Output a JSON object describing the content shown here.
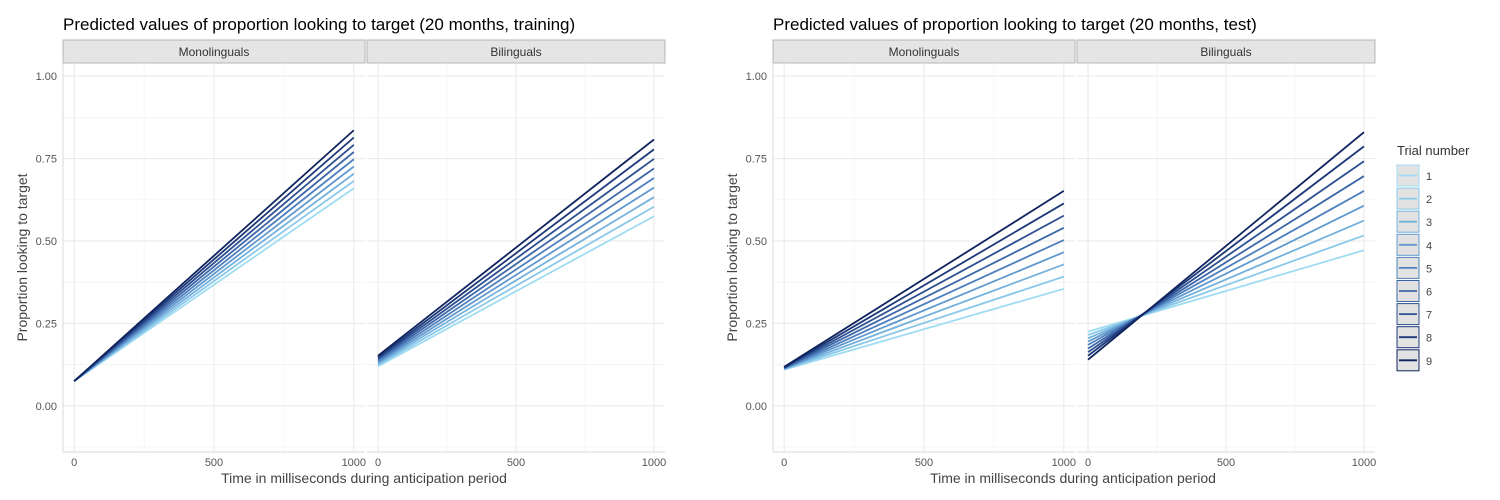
{
  "legend": {
    "title": "Trial number",
    "placement": "right",
    "entries": [
      "1",
      "2",
      "3",
      "4",
      "5",
      "6",
      "7",
      "8",
      "9"
    ],
    "colors": [
      "#9fdcf2",
      "#8ac8ea",
      "#75b1dd",
      "#6199cf",
      "#4e80be",
      "#3d67a8",
      "#2c4f91",
      "#1d3878",
      "#0f235e"
    ]
  },
  "chart_data": [
    {
      "type": "line",
      "title": "Predicted values of proportion looking to target (20 months, training)",
      "xlabel": "Time in milliseconds during anticipation period",
      "ylabel": "Proportion looking to target",
      "xlim": [
        -40,
        1040
      ],
      "ylim": [
        -0.14,
        1.04
      ],
      "xticks": [
        0,
        500,
        1000
      ],
      "yticks": [
        0.0,
        0.25,
        0.5,
        0.75,
        1.0
      ],
      "ytick_labels": [
        "0.00",
        "0.25",
        "0.50",
        "0.75",
        "1.00"
      ],
      "grid": true,
      "x": [
        0,
        1000
      ],
      "panels": [
        {
          "label": "Monolinguals",
          "series": [
            {
              "trial": "1",
              "values": [
                0.075,
                0.66
              ]
            },
            {
              "trial": "2",
              "values": [
                0.075,
                0.682
              ]
            },
            {
              "trial": "3",
              "values": [
                0.075,
                0.704
              ]
            },
            {
              "trial": "4",
              "values": [
                0.075,
                0.726
              ]
            },
            {
              "trial": "5",
              "values": [
                0.075,
                0.748
              ]
            },
            {
              "trial": "6",
              "values": [
                0.075,
                0.77
              ]
            },
            {
              "trial": "7",
              "values": [
                0.075,
                0.792
              ]
            },
            {
              "trial": "8",
              "values": [
                0.075,
                0.814
              ]
            },
            {
              "trial": "9",
              "values": [
                0.075,
                0.836
              ]
            }
          ]
        },
        {
          "label": "Bilinguals",
          "series": [
            {
              "trial": "1",
              "values": [
                0.12,
                0.575
              ]
            },
            {
              "trial": "2",
              "values": [
                0.124,
                0.604
              ]
            },
            {
              "trial": "3",
              "values": [
                0.128,
                0.633
              ]
            },
            {
              "trial": "4",
              "values": [
                0.132,
                0.662
              ]
            },
            {
              "trial": "5",
              "values": [
                0.136,
                0.691
              ]
            },
            {
              "trial": "6",
              "values": [
                0.14,
                0.72
              ]
            },
            {
              "trial": "7",
              "values": [
                0.144,
                0.749
              ]
            },
            {
              "trial": "8",
              "values": [
                0.148,
                0.778
              ]
            },
            {
              "trial": "9",
              "values": [
                0.152,
                0.808
              ]
            }
          ]
        }
      ]
    },
    {
      "type": "line",
      "title": "Predicted values of proportion looking to target (20 months, test)",
      "xlabel": "Time in milliseconds during anticipation period",
      "ylabel": "Proportion looking to target",
      "xlim": [
        -40,
        1040
      ],
      "ylim": [
        -0.14,
        1.04
      ],
      "xticks": [
        0,
        500,
        1000
      ],
      "yticks": [
        0.0,
        0.25,
        0.5,
        0.75,
        1.0
      ],
      "ytick_labels": [
        "0.00",
        "0.25",
        "0.50",
        "0.75",
        "1.00"
      ],
      "grid": true,
      "x": [
        0,
        1000
      ],
      "panels": [
        {
          "label": "Monolinguals",
          "series": [
            {
              "trial": "1",
              "values": [
                0.11,
                0.355
              ]
            },
            {
              "trial": "2",
              "values": [
                0.111,
                0.392
              ]
            },
            {
              "trial": "3",
              "values": [
                0.112,
                0.429
              ]
            },
            {
              "trial": "4",
              "values": [
                0.113,
                0.466
              ]
            },
            {
              "trial": "5",
              "values": [
                0.114,
                0.503
              ]
            },
            {
              "trial": "6",
              "values": [
                0.115,
                0.54
              ]
            },
            {
              "trial": "7",
              "values": [
                0.116,
                0.577
              ]
            },
            {
              "trial": "8",
              "values": [
                0.117,
                0.614
              ]
            },
            {
              "trial": "9",
              "values": [
                0.118,
                0.652
              ]
            }
          ]
        },
        {
          "label": "Bilinguals",
          "series": [
            {
              "trial": "1",
              "values": [
                0.225,
                0.472
              ]
            },
            {
              "trial": "2",
              "values": [
                0.215,
                0.517
              ]
            },
            {
              "trial": "3",
              "values": [
                0.205,
                0.562
              ]
            },
            {
              "trial": "4",
              "values": [
                0.195,
                0.607
              ]
            },
            {
              "trial": "5",
              "values": [
                0.185,
                0.652
              ]
            },
            {
              "trial": "6",
              "values": [
                0.174,
                0.697
              ]
            },
            {
              "trial": "7",
              "values": [
                0.163,
                0.742
              ]
            },
            {
              "trial": "8",
              "values": [
                0.152,
                0.787
              ]
            },
            {
              "trial": "9",
              "values": [
                0.14,
                0.83
              ]
            }
          ]
        }
      ]
    }
  ]
}
